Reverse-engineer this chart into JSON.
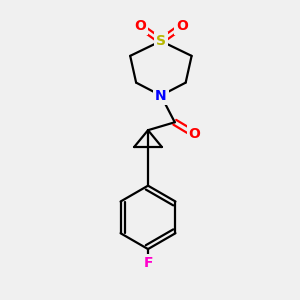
{
  "background_color": "#f0f0f0",
  "atom_colors": {
    "S": "#b8b800",
    "N": "#0000ff",
    "O": "#ff0000",
    "F": "#ff00cc",
    "C": "#000000"
  },
  "font_size_atoms": 10,
  "line_width": 1.6,
  "figsize": [
    3.0,
    3.0
  ],
  "dpi": 100
}
